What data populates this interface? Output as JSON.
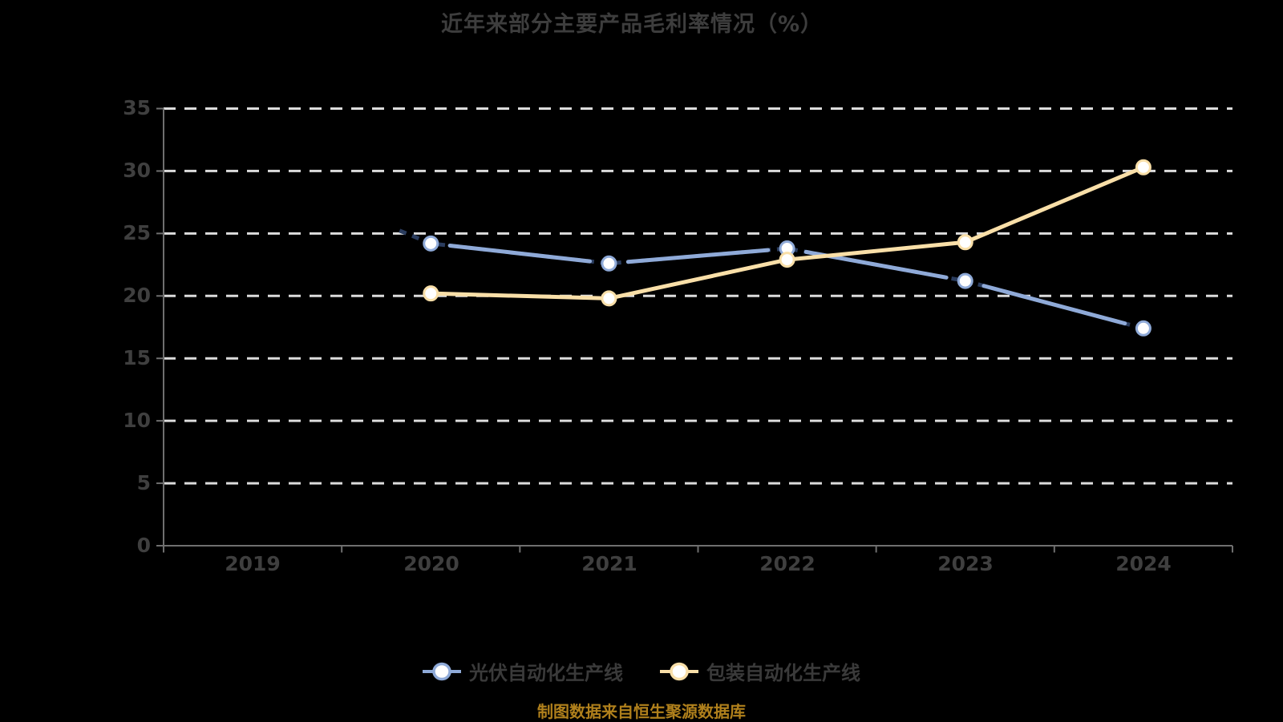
{
  "page": {
    "background": "#000000"
  },
  "title": "近年来部分主要产品毛利率情况（%）",
  "source_note": "制图数据来自恒生聚源数据库",
  "colors": {
    "title_text": "#3d3d3d",
    "axis_label": "#3f3f3f",
    "axis_line": "#6f6f6f",
    "gridline": "#dcdcdc",
    "legend_text": "#3a3a3a",
    "source_text": "#b0801c",
    "marker_fill": "#ffffff"
  },
  "chart_data": {
    "type": "line",
    "title": "近年来部分主要产品毛利率情况（%）",
    "unit": "%",
    "categories": [
      "2019",
      "2020",
      "2021",
      "2022",
      "2023",
      "2024"
    ],
    "series": [
      {
        "name": "光伏自动化生产线",
        "color": "#8faad8",
        "dash_overlay_color": "#2a3c5e",
        "values": [
          null,
          24.2,
          22.6,
          23.8,
          21.2,
          17.4
        ]
      },
      {
        "name": "包装自动化生产线",
        "color": "#f9dfa8",
        "values": [
          null,
          20.2,
          19.8,
          22.9,
          24.3,
          30.3
        ]
      }
    ],
    "ylim": [
      0,
      35
    ],
    "y_ticks": [
      "0",
      "5",
      "10",
      "15",
      "20",
      "25",
      "30",
      "35"
    ],
    "grid": "horizontal-dashed",
    "legend_position": "bottom"
  }
}
